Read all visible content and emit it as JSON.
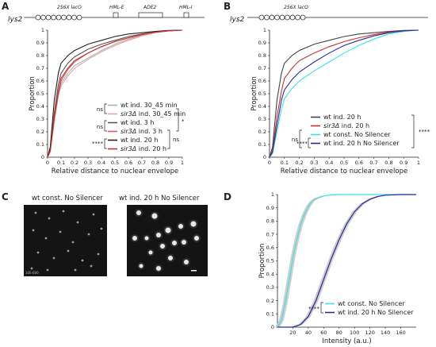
{
  "panels": {
    "A": {
      "letter": "A"
    },
    "B": {
      "letter": "B"
    },
    "C": {
      "letter": "C"
    },
    "D": {
      "letter": "D"
    }
  },
  "locus": {
    "A": {
      "name": "lys2",
      "array": "256X lacO",
      "hmle": "HML-E",
      "ade2": "ADE2",
      "hmli": "HML-I"
    },
    "B": {
      "name": "lys2",
      "array": "256X lacO"
    }
  },
  "micrographs": {
    "left_title": "wt const. No Silencer",
    "right_title": "wt ind. 20 h No Silencer",
    "left_stamp": "10E-600"
  },
  "colors": {
    "gray_light": "#b0b0b0",
    "gray_dark": "#555555",
    "black": "#222222",
    "red_light": "#e8a0a0",
    "red": "#c83030",
    "cyan": "#3fe0e8",
    "navy": "#2a2aa0",
    "band": "#c8c8c8"
  },
  "chart_data": [
    {
      "panel": "A",
      "type": "line",
      "xlabel": "Relative distance to nuclear envelope",
      "ylabel": "Proportion",
      "xlim": [
        0,
        1
      ],
      "ylim": [
        0,
        1
      ],
      "xticks": [
        "0",
        "0.1",
        "0.2",
        "0.3",
        "0.4",
        "0.5",
        "0.6",
        "0.7",
        "0.8",
        "0.9",
        "1"
      ],
      "yticks": [
        "0",
        "0.1",
        "0.2",
        "0.3",
        "0.4",
        "0.5",
        "0.6",
        "0.7",
        "0.8",
        "0.9",
        "1"
      ],
      "series": [
        {
          "name": "wt ind. 30_45 min",
          "color": "#b0b0b0",
          "x": [
            0,
            0.02,
            0.05,
            0.08,
            0.1,
            0.15,
            0.2,
            0.3,
            0.4,
            0.5,
            0.6,
            0.7,
            0.8,
            0.9,
            1
          ],
          "y": [
            0,
            0.05,
            0.3,
            0.5,
            0.58,
            0.66,
            0.72,
            0.78,
            0.84,
            0.89,
            0.93,
            0.96,
            0.98,
            0.995,
            1
          ]
        },
        {
          "name": "sir3Δ ind. 30_45 min",
          "color": "#e8a0a0",
          "x": [
            0,
            0.02,
            0.05,
            0.08,
            0.1,
            0.15,
            0.2,
            0.3,
            0.4,
            0.5,
            0.6,
            0.7,
            0.8,
            0.9,
            1
          ],
          "y": [
            0,
            0.04,
            0.28,
            0.48,
            0.56,
            0.64,
            0.7,
            0.77,
            0.83,
            0.88,
            0.92,
            0.955,
            0.98,
            0.995,
            1
          ]
        },
        {
          "name": "wt ind. 3 h",
          "color": "#555555",
          "x": [
            0,
            0.02,
            0.05,
            0.08,
            0.1,
            0.15,
            0.2,
            0.3,
            0.4,
            0.5,
            0.6,
            0.7,
            0.8,
            0.9,
            1
          ],
          "y": [
            0,
            0.06,
            0.35,
            0.57,
            0.66,
            0.74,
            0.79,
            0.85,
            0.89,
            0.92,
            0.95,
            0.97,
            0.985,
            0.995,
            1
          ]
        },
        {
          "name": "sir3Δ ind. 3 h",
          "color": "#d06060",
          "x": [
            0,
            0.02,
            0.05,
            0.08,
            0.1,
            0.15,
            0.2,
            0.3,
            0.4,
            0.5,
            0.6,
            0.7,
            0.8,
            0.9,
            1
          ],
          "y": [
            0,
            0.05,
            0.3,
            0.5,
            0.6,
            0.69,
            0.75,
            0.82,
            0.87,
            0.91,
            0.94,
            0.965,
            0.985,
            0.995,
            1
          ]
        },
        {
          "name": "wt ind. 20 h",
          "color": "#222222",
          "x": [
            0,
            0.02,
            0.05,
            0.08,
            0.1,
            0.15,
            0.2,
            0.3,
            0.4,
            0.5,
            0.6,
            0.7,
            0.8,
            0.9,
            1
          ],
          "y": [
            0,
            0.08,
            0.45,
            0.66,
            0.74,
            0.8,
            0.84,
            0.89,
            0.92,
            0.95,
            0.97,
            0.98,
            0.99,
            0.998,
            1
          ]
        },
        {
          "name": "sir3Δ ind. 20 h",
          "color": "#c83030",
          "x": [
            0,
            0.02,
            0.05,
            0.08,
            0.1,
            0.15,
            0.2,
            0.3,
            0.4,
            0.5,
            0.6,
            0.7,
            0.8,
            0.9,
            1
          ],
          "y": [
            0,
            0.05,
            0.32,
            0.52,
            0.62,
            0.7,
            0.76,
            0.82,
            0.87,
            0.91,
            0.94,
            0.965,
            0.985,
            0.995,
            1
          ]
        }
      ],
      "legend": [
        {
          "label": "wt ind. 30_45 min",
          "color": "#b0b0b0",
          "italic_prefix": ""
        },
        {
          "label": "sir3Δ ind. 30_45 min",
          "color": "#e8a0a0",
          "italic_prefix": "sir3Δ"
        },
        {
          "label": "wt ind. 3 h",
          "color": "#555555",
          "italic_prefix": ""
        },
        {
          "label": "sir3Δ ind. 3 h",
          "color": "#d06060",
          "italic_prefix": "sir3Δ"
        },
        {
          "label": "wt ind. 20 h",
          "color": "#222222",
          "italic_prefix": ""
        },
        {
          "label": "sir3Δ ind. 20 h",
          "color": "#c83030",
          "italic_prefix": "sir3Δ"
        }
      ],
      "significance": {
        "ns1": "ns",
        "ns2": "ns",
        "star1": "*",
        "star4": "****",
        "ns3": "ns"
      }
    },
    {
      "panel": "B",
      "type": "line",
      "xlabel": "Relative distance to nuclear envelope",
      "ylabel": "Proportion",
      "xlim": [
        0,
        1
      ],
      "ylim": [
        0,
        1
      ],
      "xticks": [
        "0",
        "0.1",
        "0.2",
        "0.3",
        "0.4",
        "0.5",
        "0.6",
        "0.7",
        "0.8",
        "0.9",
        "1"
      ],
      "yticks": [
        "0",
        "0.1",
        "0.2",
        "0.3",
        "0.4",
        "0.5",
        "0.6",
        "0.7",
        "0.8",
        "0.9",
        "1"
      ],
      "series": [
        {
          "name": "wt ind. 20 h",
          "color": "#444444",
          "x": [
            0,
            0.02,
            0.05,
            0.08,
            0.1,
            0.15,
            0.2,
            0.3,
            0.4,
            0.5,
            0.6,
            0.7,
            0.8,
            0.9,
            1
          ],
          "y": [
            0,
            0.08,
            0.45,
            0.66,
            0.74,
            0.8,
            0.84,
            0.89,
            0.92,
            0.95,
            0.97,
            0.98,
            0.99,
            0.998,
            1
          ]
        },
        {
          "name": "sir3Δ ind. 20 h",
          "color": "#c83030",
          "x": [
            0,
            0.02,
            0.05,
            0.08,
            0.1,
            0.15,
            0.2,
            0.3,
            0.4,
            0.5,
            0.6,
            0.7,
            0.8,
            0.9,
            1
          ],
          "y": [
            0,
            0.05,
            0.32,
            0.52,
            0.62,
            0.7,
            0.76,
            0.82,
            0.87,
            0.91,
            0.94,
            0.965,
            0.985,
            0.995,
            1
          ]
        },
        {
          "name": "wt const. No Silencer",
          "color": "#3fe0e8",
          "x": [
            0,
            0.02,
            0.05,
            0.08,
            0.1,
            0.15,
            0.2,
            0.3,
            0.4,
            0.5,
            0.6,
            0.7,
            0.8,
            0.9,
            1
          ],
          "y": [
            0,
            0.03,
            0.2,
            0.38,
            0.46,
            0.54,
            0.6,
            0.68,
            0.75,
            0.82,
            0.88,
            0.93,
            0.97,
            0.99,
            1
          ]
        },
        {
          "name": "wt ind. 20 h No Silencer",
          "color": "#2a2aa0",
          "x": [
            0,
            0.02,
            0.05,
            0.08,
            0.1,
            0.15,
            0.2,
            0.3,
            0.4,
            0.5,
            0.6,
            0.7,
            0.8,
            0.9,
            1
          ],
          "y": [
            0,
            0.04,
            0.25,
            0.45,
            0.53,
            0.61,
            0.67,
            0.75,
            0.82,
            0.88,
            0.92,
            0.955,
            0.98,
            0.995,
            1
          ]
        }
      ],
      "legend": [
        {
          "label": "wt ind. 20 h",
          "color": "#444444",
          "italic_prefix": ""
        },
        {
          "label": "sir3Δ ind. 20 h",
          "color": "#c83030",
          "italic_prefix": "sir3Δ"
        },
        {
          "label": "wt const. No Silencer",
          "color": "#3fe0e8",
          "italic_prefix": ""
        },
        {
          "label": "wt ind. 20 h No Silencer",
          "color": "#2a2aa0",
          "italic_prefix": ""
        }
      ],
      "significance": {
        "ns": "ns",
        "star4a": "****",
        "star4b": "****"
      }
    },
    {
      "panel": "D",
      "type": "line",
      "xlabel": "Intensity (a.u.)",
      "ylabel": "Proportion",
      "xlim": [
        0,
        180
      ],
      "ylim": [
        0,
        1
      ],
      "xticks": [
        "20",
        "40",
        "60",
        "80",
        "100",
        "120",
        "140",
        "160"
      ],
      "yticks": [
        "0",
        "0.1",
        "0.2",
        "0.3",
        "0.4",
        "0.5",
        "0.6",
        "0.7",
        "0.8",
        "0.9",
        "1"
      ],
      "series": [
        {
          "name": "wt const. No Silencer",
          "color": "#3fe0e8",
          "x": [
            0,
            5,
            10,
            15,
            20,
            25,
            30,
            35,
            40,
            45,
            50,
            60,
            70,
            80,
            100,
            180
          ],
          "y": [
            0,
            0.05,
            0.18,
            0.35,
            0.52,
            0.66,
            0.77,
            0.85,
            0.91,
            0.95,
            0.97,
            0.99,
            0.997,
            1,
            1,
            1
          ]
        },
        {
          "name": "wt ind. 20 h No Silencer",
          "color": "#2a2aa0",
          "x": [
            0,
            20,
            30,
            40,
            50,
            60,
            70,
            80,
            90,
            100,
            110,
            120,
            130,
            140,
            160,
            180
          ],
          "y": [
            0,
            0,
            0.02,
            0.08,
            0.2,
            0.36,
            0.52,
            0.66,
            0.78,
            0.87,
            0.93,
            0.965,
            0.985,
            0.995,
            1,
            1
          ]
        }
      ],
      "legend": [
        {
          "label": "wt const. No Silencer",
          "color": "#3fe0e8",
          "italic_prefix": ""
        },
        {
          "label": "wt ind. 20 h No Silencer",
          "color": "#2a2aa0",
          "italic_prefix": ""
        }
      ],
      "significance": {
        "star4": "****"
      }
    }
  ]
}
